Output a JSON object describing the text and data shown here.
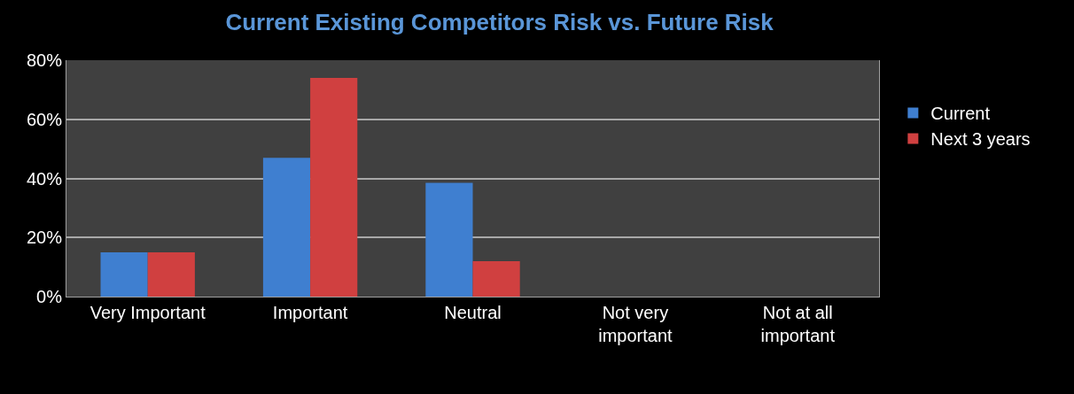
{
  "chart_data": {
    "type": "bar",
    "title": "Current Existing Competitors Risk vs. Future Risk",
    "categories": [
      "Very Important",
      "Important",
      "Neutral",
      "Not very important",
      "Not at all important"
    ],
    "series": [
      {
        "name": "Current",
        "color": "#3f7fd0",
        "values": [
          15,
          47,
          38.5,
          0,
          0
        ]
      },
      {
        "name": "Next 3 years",
        "color": "#d04040",
        "values": [
          15,
          74,
          12,
          0,
          0
        ]
      }
    ],
    "ylim": [
      0,
      80
    ],
    "yticks": [
      {
        "value": 0,
        "label": "0%"
      },
      {
        "value": 20,
        "label": "20%"
      },
      {
        "value": 40,
        "label": "40%"
      },
      {
        "value": 60,
        "label": "60%"
      },
      {
        "value": 80,
        "label": "80%"
      }
    ],
    "grid": "y",
    "legend": "right"
  }
}
